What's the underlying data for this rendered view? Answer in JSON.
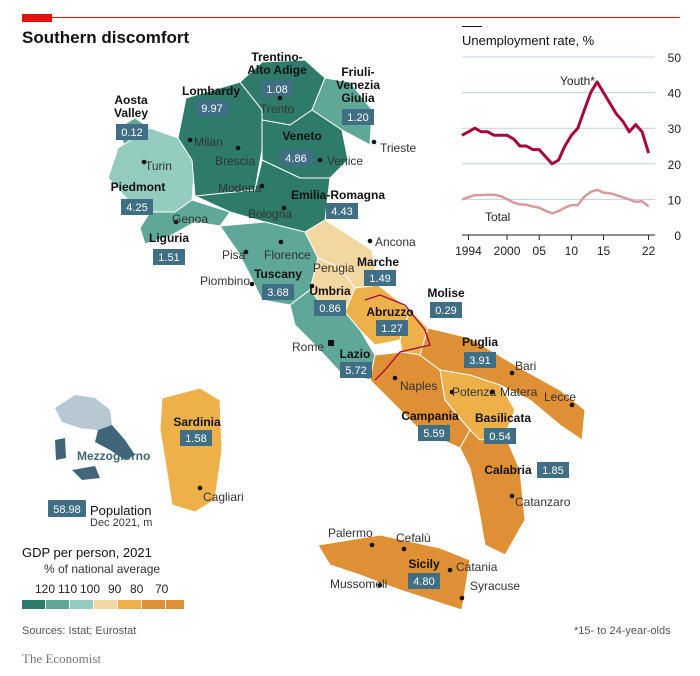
{
  "title": "Southern discomfort",
  "colors": {
    "accent": "#e3120b",
    "g120": "#2f7b6a",
    "g110": "#5fa796",
    "g100": "#93cbbf",
    "g90": "#f3d7a0",
    "g80": "#eeb14a",
    "g70": "#df8f34",
    "popbox": "#3f6e85"
  },
  "regions": [
    {
      "name": "Aosta\nValley",
      "pop": "0.12"
    },
    {
      "name": "Lombardy",
      "pop": "9.97"
    },
    {
      "name": "Trentino-\nAlto Adige",
      "pop": "1.08"
    },
    {
      "name": "Friuli-\nVenezia\nGiulia",
      "pop": "1.20"
    },
    {
      "name": "Veneto",
      "pop": "4.86"
    },
    {
      "name": "Piedmont",
      "pop": "4.25"
    },
    {
      "name": "Emilia-Romagna",
      "pop": "4.43"
    },
    {
      "name": "Liguria",
      "pop": "1.51"
    },
    {
      "name": "Tuscany",
      "pop": "3.68"
    },
    {
      "name": "Umbria",
      "pop": "0.86"
    },
    {
      "name": "Marche",
      "pop": "1.49"
    },
    {
      "name": "Abruzzo",
      "pop": "1.27"
    },
    {
      "name": "Molise",
      "pop": "0.29"
    },
    {
      "name": "Lazio",
      "pop": "5.72"
    },
    {
      "name": "Puglia",
      "pop": "3.91"
    },
    {
      "name": "Campania",
      "pop": "5.59"
    },
    {
      "name": "Basilicata",
      "pop": "0.54"
    },
    {
      "name": "Calabria",
      "pop": "1.85"
    },
    {
      "name": "Sardinia",
      "pop": "1.58"
    },
    {
      "name": "Sicily",
      "pop": "4.80"
    }
  ],
  "cities": [
    "Milan",
    "Trento",
    "Brescia",
    "Venice",
    "Trieste",
    "Turin",
    "Modena",
    "Bologna",
    "Genoa",
    "Florence",
    "Pisa",
    "Piombino",
    "Perugia",
    "Ancona",
    "Rome",
    "Naples",
    "Bari",
    "Potenza",
    "Matera",
    "Lecce",
    "Catanzaro",
    "Cagliari",
    "Palermo",
    "Cefalù",
    "Mussomeli",
    "Catania",
    "Syracuse"
  ],
  "inset_label": "Mezzogiorno",
  "population_key": {
    "value": "58.98",
    "label": "Population",
    "sub": "Dec 2021, m"
  },
  "legend": {
    "title": "GDP per person, 2021",
    "subtitle": "% of national average",
    "ticks": [
      "120",
      "110",
      "100",
      "90",
      "80",
      "70"
    ]
  },
  "chart_data": {
    "type": "line",
    "title": "Unemployment rate, %",
    "x_ticks": [
      "1994",
      "2000",
      "05",
      "10",
      "15",
      "22"
    ],
    "y_ticks": [
      "0",
      "10",
      "20",
      "30",
      "40",
      "50"
    ],
    "ylim": [
      0,
      50
    ],
    "xlim": [
      1993,
      2023
    ],
    "series": [
      {
        "name": "Youth*",
        "color": "#a5083e",
        "x": [
          1993,
          1994,
          1995,
          1996,
          1997,
          1998,
          1999,
          2000,
          2001,
          2002,
          2003,
          2004,
          2005,
          2006,
          2007,
          2008,
          2009,
          2010,
          2011,
          2012,
          2013,
          2014,
          2015,
          2016,
          2017,
          2018,
          2019,
          2020,
          2021,
          2022
        ],
        "y": [
          28,
          29,
          30,
          29,
          29,
          28,
          28,
          28,
          27,
          25,
          25,
          24,
          24,
          22,
          20,
          21,
          25,
          28,
          30,
          35,
          40,
          43,
          40,
          37,
          34,
          32,
          29,
          31,
          29,
          23
        ]
      },
      {
        "name": "Total",
        "color": "#d89a9c",
        "x": [
          1993,
          1994,
          1995,
          1996,
          1997,
          1998,
          1999,
          2000,
          2001,
          2002,
          2003,
          2004,
          2005,
          2006,
          2007,
          2008,
          2009,
          2010,
          2011,
          2012,
          2013,
          2014,
          2015,
          2016,
          2017,
          2018,
          2019,
          2020,
          2021,
          2022
        ],
        "y": [
          10,
          10.6,
          11.2,
          11.2,
          11.3,
          11.3,
          10.9,
          10.1,
          9.1,
          8.6,
          8.5,
          8.0,
          7.7,
          6.8,
          6.1,
          6.7,
          7.7,
          8.4,
          8.4,
          10.7,
          12.1,
          12.7,
          11.9,
          11.7,
          11.2,
          10.6,
          10.0,
          9.3,
          9.5,
          8.1
        ]
      }
    ]
  },
  "sources": "Sources: Istat; Eurostat",
  "footnote": "*15- to 24-year-olds",
  "brand": "The Economist"
}
